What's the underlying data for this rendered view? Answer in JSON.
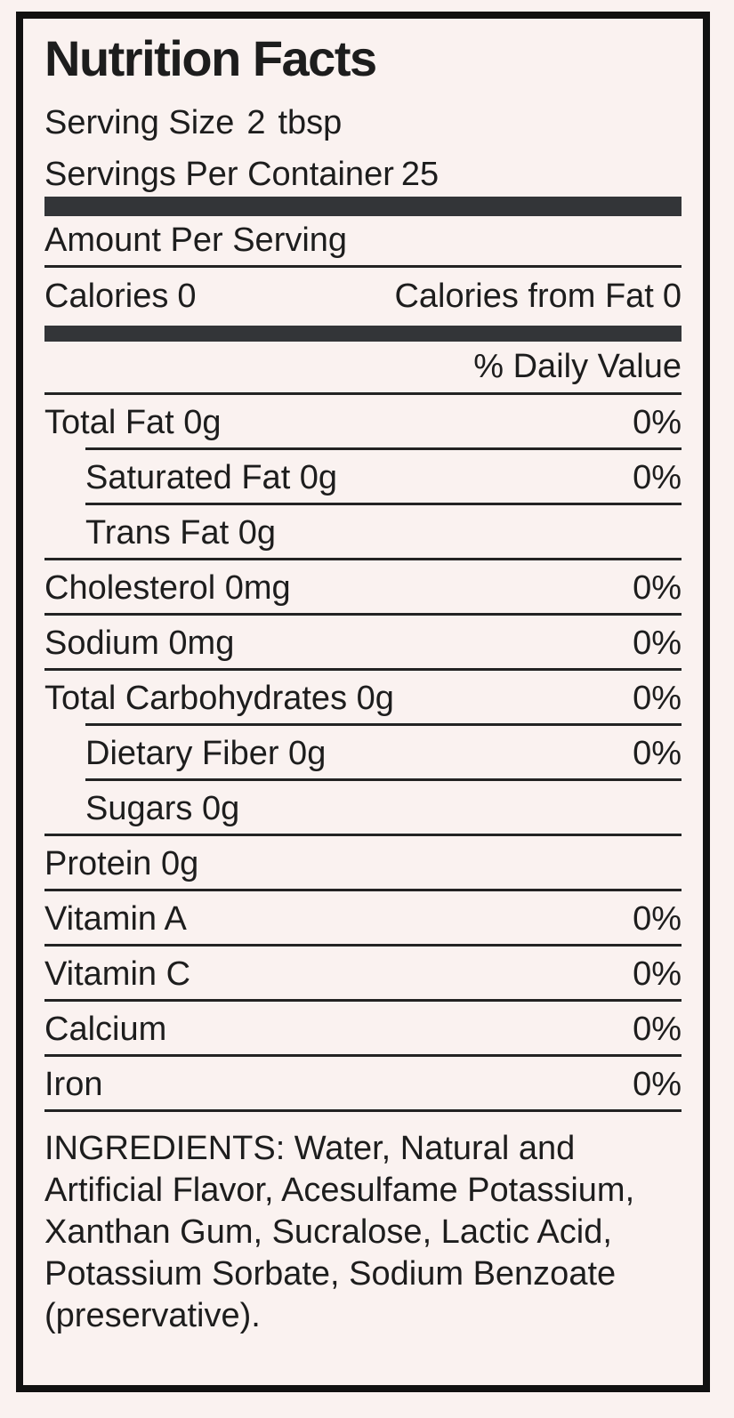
{
  "label": {
    "title": "Nutrition Facts",
    "serving_size_label": "Serving Size",
    "serving_size_amount": "2",
    "serving_size_unit": "tbsp",
    "servings_per_container_label": "Servings Per Container",
    "servings_per_container_value": "25",
    "amount_per_serving": "Amount Per Serving",
    "calories_label": "Calories",
    "calories_value": "0",
    "calories_from_fat_label": "Calories from Fat",
    "calories_from_fat_value": "0",
    "daily_value_header": "% Daily Value",
    "nutrients": [
      {
        "name": "Total Fat 0g",
        "dv": "0%"
      },
      {
        "name": "Saturated Fat 0g",
        "dv": "0%"
      },
      {
        "name": "Trans Fat 0g",
        "dv": ""
      },
      {
        "name": "Cholesterol 0mg",
        "dv": "0%"
      },
      {
        "name": "Sodium 0mg",
        "dv": "0%"
      },
      {
        "name": "Total Carbohydrates 0g",
        "dv": "0%"
      },
      {
        "name": "Dietary Fiber 0g",
        "dv": "0%"
      },
      {
        "name": "Sugars 0g",
        "dv": ""
      },
      {
        "name": "Protein 0g",
        "dv": ""
      },
      {
        "name": "Vitamin A",
        "dv": "0%"
      },
      {
        "name": "Vitamin C",
        "dv": "0%"
      },
      {
        "name": "Calcium",
        "dv": "0%"
      },
      {
        "name": "Iron",
        "dv": "0%"
      }
    ],
    "ingredients": "INGREDIENTS: Water, Natural and Artificial Flavor, Acesulfame Potassium, Xanthan Gum, Sucralose, Lactic Acid, Potassium Sorbate, Sodium Benzoate (preservative)."
  },
  "colors": {
    "background": "#faf2f0",
    "border": "#111111",
    "text": "#1d1d1d",
    "thick_bar": "#333538",
    "rule": "#232323"
  }
}
